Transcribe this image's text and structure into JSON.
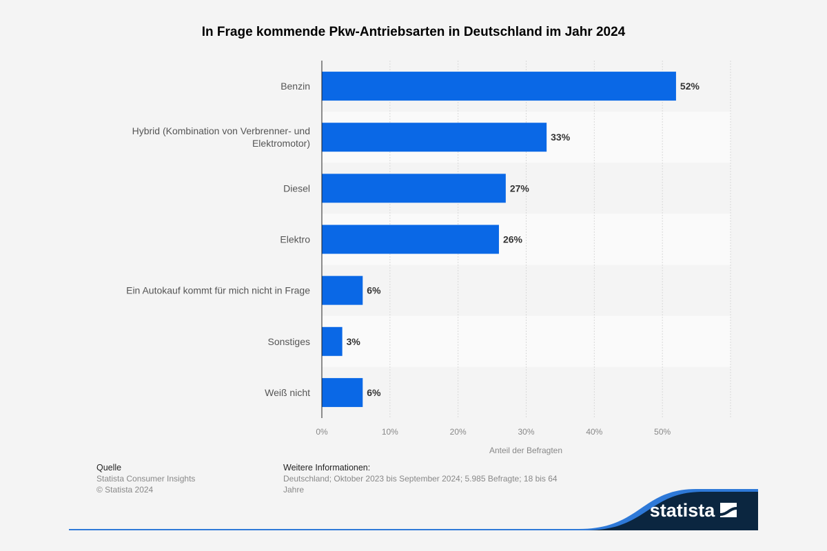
{
  "chart_data": {
    "type": "bar",
    "orientation": "horizontal",
    "title": "In Frage kommende Pkw-Antriebsarten in Deutschland im Jahr 2024",
    "xlabel": "Anteil der Befragten",
    "ylabel": "",
    "categories": [
      "Benzin",
      "Hybrid (Kombination von Verbrenner- und Elektromotor)",
      "Diesel",
      "Elektro",
      "Ein Autokauf kommt für mich nicht in Frage",
      "Sonstiges",
      "Weiß nicht"
    ],
    "category_lines": [
      [
        "Benzin"
      ],
      [
        "Hybrid (Kombination von Verbrenner- und",
        "Elektromotor)"
      ],
      [
        "Diesel"
      ],
      [
        "Elektro"
      ],
      [
        "Ein Autokauf kommt für mich nicht in Frage"
      ],
      [
        "Sonstiges"
      ],
      [
        "Weiß nicht"
      ]
    ],
    "values": [
      52,
      33,
      27,
      26,
      6,
      3,
      6
    ],
    "data_labels": [
      "52%",
      "33%",
      "27%",
      "26%",
      "6%",
      "3%",
      "6%"
    ],
    "xlim": [
      0,
      60
    ],
    "ticks": [
      0,
      10,
      20,
      30,
      40,
      50
    ],
    "tick_labels": [
      "0%",
      "10%",
      "20%",
      "30%",
      "40%",
      "50%"
    ],
    "grid": true,
    "bar_color": "#0a68e6"
  },
  "footer": {
    "source_heading": "Quelle",
    "source_lines": [
      "Statista Consumer Insights",
      "© Statista 2024"
    ],
    "info_heading": "Weitere Informationen:",
    "info_lines": [
      "Deutschland; Oktober 2023 bis September 2024; 5.985 Befragte; 18 bis 64",
      "Jahre"
    ],
    "logo_text": "statista",
    "logo_bg": "#0b2640",
    "accent": "#2e79d8"
  }
}
